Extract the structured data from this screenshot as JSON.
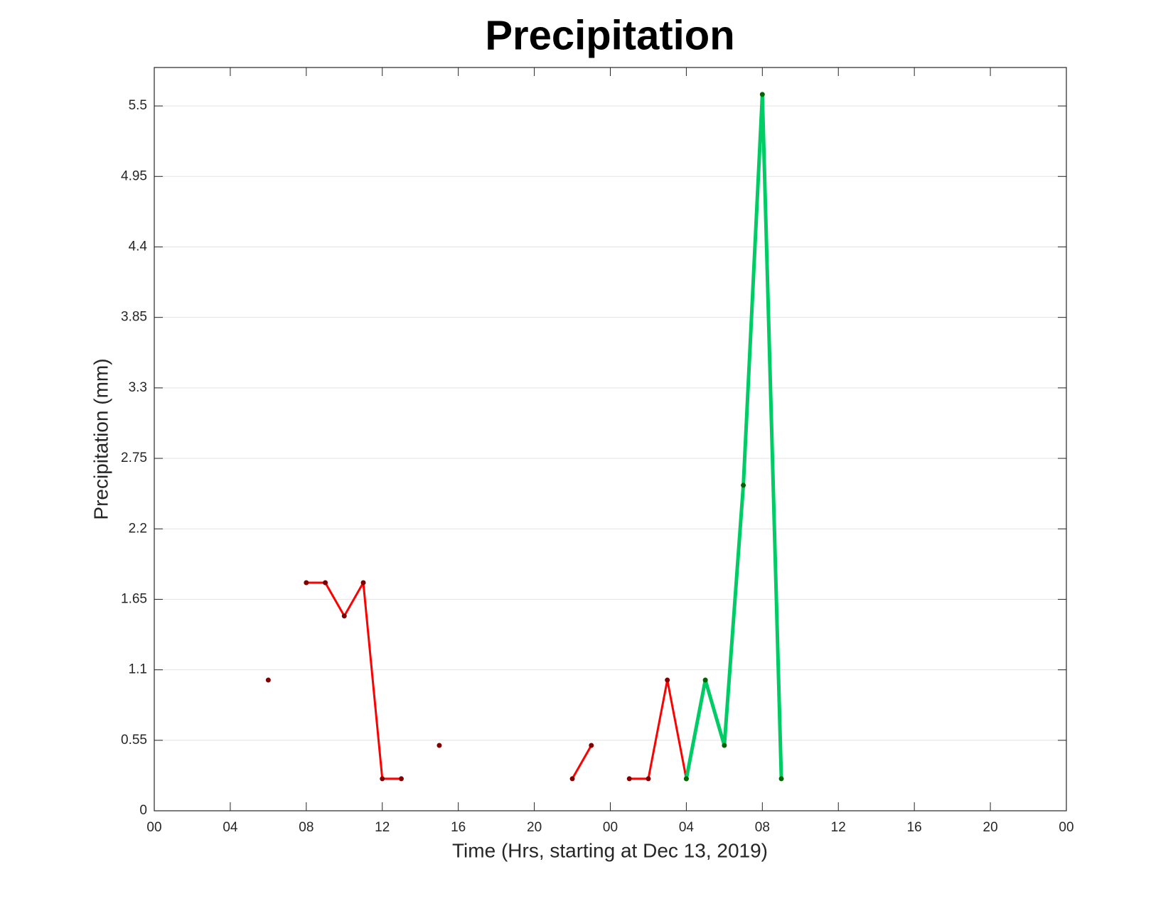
{
  "chart_data": {
    "type": "line",
    "title": "Precipitation",
    "x_label": "Time (Hrs, starting at Dec 13, 2019)",
    "y_label": "Precipitation (mm)",
    "xlim": [
      0,
      48
    ],
    "xticks": [
      {
        "value": 0,
        "label": "00"
      },
      {
        "value": 4,
        "label": "04"
      },
      {
        "value": 8,
        "label": "08"
      },
      {
        "value": 12,
        "label": "12"
      },
      {
        "value": 16,
        "label": "16"
      },
      {
        "value": 20,
        "label": "20"
      },
      {
        "value": 24,
        "label": "00"
      },
      {
        "value": 28,
        "label": "04"
      },
      {
        "value": 32,
        "label": "08"
      },
      {
        "value": 36,
        "label": "12"
      },
      {
        "value": 40,
        "label": "16"
      },
      {
        "value": 44,
        "label": "20"
      },
      {
        "value": 48,
        "label": "00"
      }
    ],
    "ylim": [
      0,
      5.8
    ],
    "yticks": [
      0,
      0.55,
      1.1,
      1.65,
      2.2,
      2.75,
      3.3,
      3.85,
      4.4,
      4.95,
      5.5
    ],
    "grid": true,
    "series": [
      {
        "color": "#ff0000",
        "marker_color": "#800000",
        "line_width": 3,
        "x": [
          6,
          7,
          8,
          9,
          10,
          11,
          12,
          13,
          14,
          15,
          16,
          17,
          18,
          19,
          20,
          21,
          22,
          23,
          24,
          25,
          26,
          27,
          28
        ],
        "values": [
          1.02,
          null,
          1.78,
          1.78,
          1.52,
          1.78,
          0.25,
          0.25,
          null,
          0.51,
          null,
          null,
          null,
          null,
          null,
          null,
          0.25,
          0.51,
          null,
          0.25,
          0.25,
          1.02,
          0.25
        ]
      },
      {
        "color": "#00cc66",
        "marker_color": "#006400",
        "line_width": 5,
        "x": [
          28,
          29,
          30,
          31,
          32,
          33
        ],
        "values": [
          0.25,
          1.02,
          0.51,
          2.54,
          5.59,
          0.25
        ]
      }
    ]
  }
}
